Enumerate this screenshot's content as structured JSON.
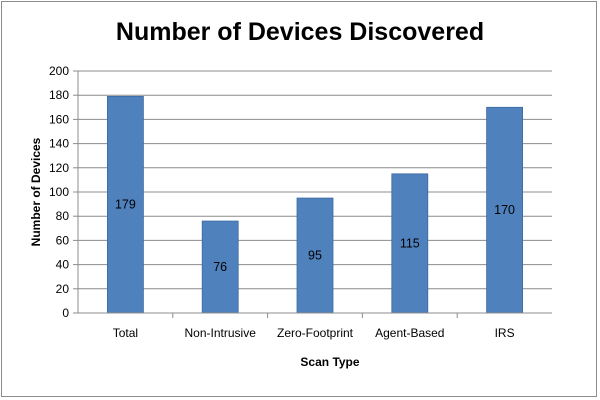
{
  "chart_data": {
    "type": "bar",
    "title": "Number of Devices Discovered",
    "xlabel": "Scan Type",
    "ylabel": "Number of Devices",
    "categories": [
      "Total",
      "Non-Intrusive",
      "Zero-Footprint",
      "Agent-Based",
      "IRS"
    ],
    "values": [
      179,
      76,
      95,
      115,
      170
    ],
    "data_labels": [
      "179",
      "76",
      "95",
      "115",
      "170"
    ],
    "ylim": [
      0,
      200
    ],
    "yticks": [
      0,
      20,
      40,
      60,
      80,
      100,
      120,
      140,
      160,
      180,
      200
    ],
    "grid": true,
    "legend": "none",
    "colors": {
      "bar": "#4f81bd",
      "bar_edge": "#3a6aa3",
      "grid": "#8c8c8c",
      "axis": "#8c8c8c"
    }
  }
}
